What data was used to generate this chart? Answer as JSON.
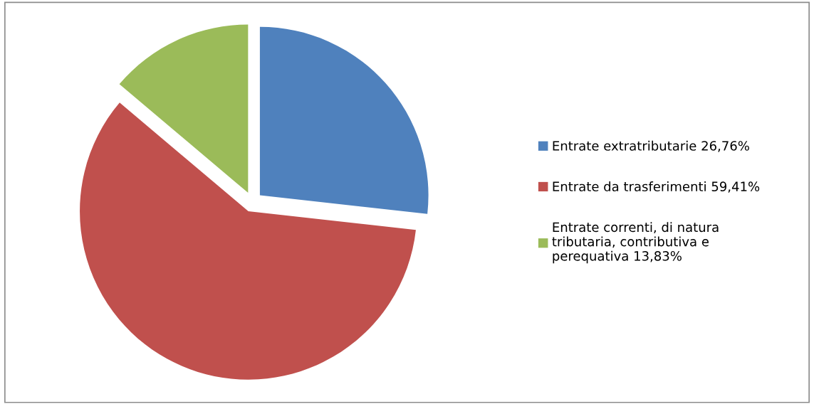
{
  "chart_data": {
    "type": "pie",
    "categories": [
      "Entrate extratributarie 26,76%",
      "Entrate da trasferimenti 59,41%",
      "Entrate correnti, di natura tributaria, contributiva e perequativa 13,83%"
    ],
    "values": [
      26.76,
      59.41,
      13.83
    ],
    "colors": [
      "#4f81bd",
      "#c0504d",
      "#9bbb59"
    ],
    "legend": "right"
  }
}
